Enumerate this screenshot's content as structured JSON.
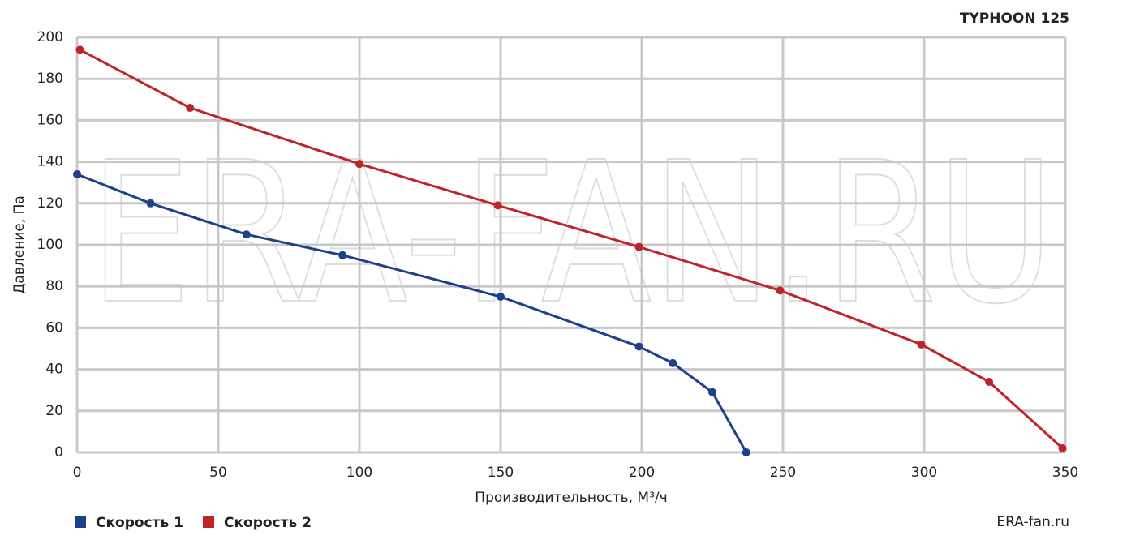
{
  "chart_data": {
    "type": "line",
    "title": "TYPHOON 125",
    "watermark": "ERA-FAN.RU",
    "source": "ERA-fan.ru",
    "x_label": "Производительность, М³/ч",
    "y_label": "Давление, Па",
    "xlim": [
      0,
      350
    ],
    "xticks": [
      0,
      50,
      100,
      150,
      200,
      250,
      300,
      350
    ],
    "ylim": [
      0,
      200
    ],
    "yticks": [
      0,
      20,
      40,
      60,
      80,
      100,
      120,
      140,
      160,
      180,
      200
    ],
    "grid": true,
    "series": [
      {
        "name": "Скорость 1",
        "color": "#1d4189",
        "x": [
          0,
          26,
          60,
          94,
          150,
          199,
          211,
          225,
          237
        ],
        "values": [
          134,
          120,
          105,
          95,
          75,
          51,
          43,
          29,
          0
        ]
      },
      {
        "name": "Скорость 2",
        "color": "#c0242b",
        "x": [
          1,
          40,
          100,
          149,
          199,
          249,
          299,
          323,
          349
        ],
        "values": [
          194,
          166,
          139,
          119,
          99,
          78,
          52,
          34,
          2
        ]
      }
    ]
  }
}
